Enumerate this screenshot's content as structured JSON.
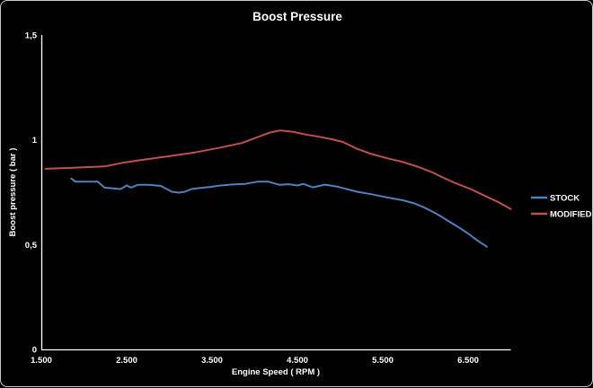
{
  "window": {
    "background": "#000000",
    "border_color": "#c9c9c9",
    "text_color": "#ffffff"
  },
  "chart_data": {
    "type": "line",
    "title": "Boost Pressure",
    "xlabel": "Engine Speed ( RPM )",
    "ylabel": "Boost pressure ( bar )",
    "xlim": [
      1500,
      7000
    ],
    "ylim": [
      0,
      1.5
    ],
    "grid": false,
    "legend_position": "right",
    "x_ticks": [
      {
        "value": 1500,
        "label": "1.500"
      },
      {
        "value": 2500,
        "label": "2.500"
      },
      {
        "value": 3500,
        "label": "3.500"
      },
      {
        "value": 4500,
        "label": "4.500"
      },
      {
        "value": 5500,
        "label": "5.500"
      },
      {
        "value": 6500,
        "label": "6.500"
      }
    ],
    "y_ticks": [
      {
        "value": 0,
        "label": "0"
      },
      {
        "value": 0.5,
        "label": "0,5"
      },
      {
        "value": 1,
        "label": "1"
      },
      {
        "value": 1.5,
        "label": "1,5"
      }
    ],
    "series": [
      {
        "name": "STOCK",
        "color": "#4F81BD",
        "points": [
          [
            1850,
            0.815
          ],
          [
            1900,
            0.8
          ],
          [
            2160,
            0.8
          ],
          [
            2240,
            0.772
          ],
          [
            2430,
            0.765
          ],
          [
            2500,
            0.782
          ],
          [
            2550,
            0.772
          ],
          [
            2630,
            0.785
          ],
          [
            2760,
            0.785
          ],
          [
            2900,
            0.78
          ],
          [
            3030,
            0.752
          ],
          [
            3110,
            0.748
          ],
          [
            3180,
            0.752
          ],
          [
            3260,
            0.765
          ],
          [
            3360,
            0.77
          ],
          [
            3470,
            0.775
          ],
          [
            3600,
            0.782
          ],
          [
            3740,
            0.787
          ],
          [
            3890,
            0.79
          ],
          [
            4030,
            0.8
          ],
          [
            4160,
            0.8
          ],
          [
            4290,
            0.785
          ],
          [
            4400,
            0.788
          ],
          [
            4500,
            0.782
          ],
          [
            4570,
            0.79
          ],
          [
            4680,
            0.773
          ],
          [
            4820,
            0.786
          ],
          [
            4950,
            0.778
          ],
          [
            5030,
            0.77
          ],
          [
            5200,
            0.752
          ],
          [
            5370,
            0.74
          ],
          [
            5550,
            0.725
          ],
          [
            5730,
            0.712
          ],
          [
            5870,
            0.697
          ],
          [
            5970,
            0.68
          ],
          [
            6080,
            0.658
          ],
          [
            6180,
            0.635
          ],
          [
            6290,
            0.607
          ],
          [
            6400,
            0.58
          ],
          [
            6500,
            0.553
          ],
          [
            6600,
            0.522
          ],
          [
            6720,
            0.49
          ]
        ]
      },
      {
        "name": "MODIFIED",
        "color": "#C0504D",
        "points": [
          [
            1550,
            0.862
          ],
          [
            1850,
            0.866
          ],
          [
            2240,
            0.873
          ],
          [
            2450,
            0.89
          ],
          [
            2700,
            0.905
          ],
          [
            3000,
            0.922
          ],
          [
            3300,
            0.94
          ],
          [
            3600,
            0.963
          ],
          [
            3850,
            0.985
          ],
          [
            4080,
            1.02
          ],
          [
            4180,
            1.035
          ],
          [
            4300,
            1.045
          ],
          [
            4450,
            1.038
          ],
          [
            4600,
            1.025
          ],
          [
            4750,
            1.015
          ],
          [
            4900,
            1.003
          ],
          [
            5030,
            0.99
          ],
          [
            5200,
            0.957
          ],
          [
            5370,
            0.932
          ],
          [
            5550,
            0.912
          ],
          [
            5730,
            0.895
          ],
          [
            5920,
            0.87
          ],
          [
            6080,
            0.845
          ],
          [
            6180,
            0.825
          ],
          [
            6340,
            0.795
          ],
          [
            6530,
            0.765
          ],
          [
            6710,
            0.73
          ],
          [
            6870,
            0.7
          ],
          [
            7000,
            0.67
          ]
        ]
      }
    ]
  }
}
